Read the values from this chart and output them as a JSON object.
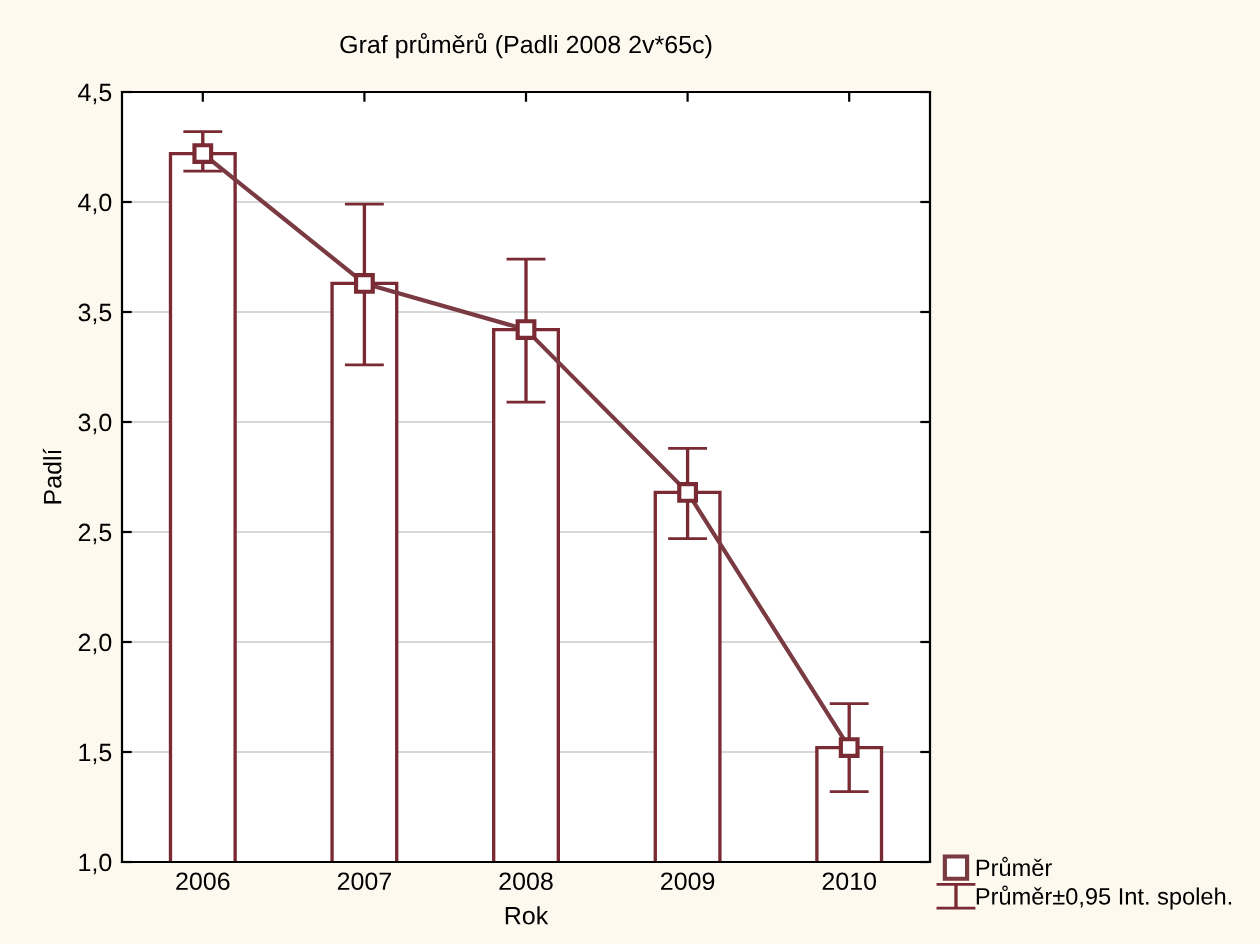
{
  "chart_data": {
    "type": "bar",
    "title": "Graf průměrů (Padli 2008 2v*65c)",
    "xlabel": "Rok",
    "ylabel": "Padlí",
    "categories": [
      "2006",
      "2007",
      "2008",
      "2009",
      "2010"
    ],
    "series": [
      {
        "color": "#7a2a32",
        "values": [
          4.22,
          3.63,
          3.42,
          2.68,
          1.52
        ]
      },
      {
        "type": "scatter",
        "name": "Průměr±0,95 Int. spoleh.",
        "color": "#7a2a32",
        "marker": "square",
        "values": [
          4.22,
          3.63,
          3.42,
          2.68,
          1.52
        ],
        "errors": [
          [
            4.14,
            4.32
          ],
          [
            3.26,
            3.99
          ],
          [
            3.09,
            3.74
          ],
          [
            2.47,
            2.88
          ],
          [
            1.32,
            1.72
          ]
        ]
      },
      {
        "type": "line",
        "name": "Průměr",
        "color": "#7a3a42",
        "marker": "none",
        "line_style": "solid",
        "values": [
          4.22,
          3.63,
          3.42,
          2.68,
          1.52
        ]
      }
    ],
    "ylim": [
      1.0,
      4.5
    ],
    "yticks": [
      {
        "value": 1.0,
        "label": "1,0"
      },
      {
        "value": 1.5,
        "label": "1,5"
      },
      {
        "value": 2.0,
        "label": "2,0"
      },
      {
        "value": 2.5,
        "label": "2,5"
      },
      {
        "value": 3.0,
        "label": "3,0"
      },
      {
        "value": 3.5,
        "label": "3,5"
      },
      {
        "value": 4.0,
        "label": "4,0"
      },
      {
        "value": 4.5,
        "label": "4,5"
      }
    ],
    "grid": "y",
    "legend": "bottom right"
  }
}
